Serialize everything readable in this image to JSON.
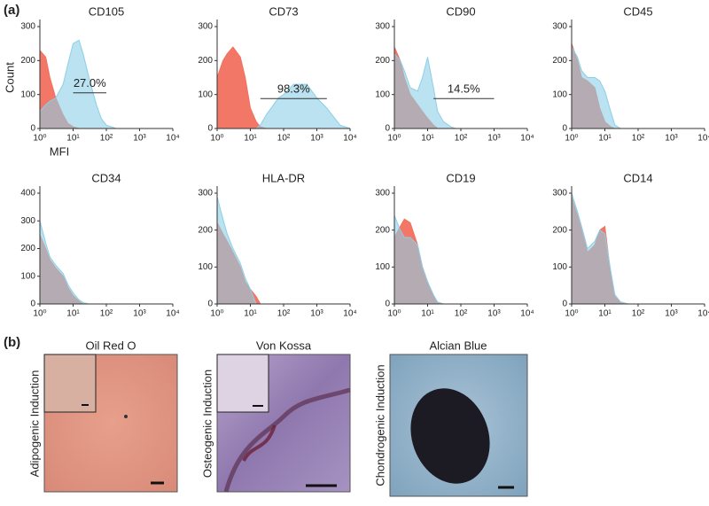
{
  "panel_labels": [
    "(a)",
    "(b)"
  ],
  "chart_data": [
    {
      "type": "area",
      "title": "CD105",
      "ylabel": "Count",
      "xlabel": "MFI",
      "log_x": true,
      "xlim": [
        1,
        10000
      ],
      "xticks": [
        {
          "value": 1,
          "label": "10⁰"
        },
        {
          "value": 10,
          "label": "10¹"
        },
        {
          "value": 100,
          "label": "10²"
        },
        {
          "value": 1000,
          "label": "10³"
        },
        {
          "value": 10000,
          "label": "10⁴"
        }
      ],
      "ylim": [
        0,
        300
      ],
      "yticks": [
        0,
        100,
        200,
        300
      ],
      "x": [
        1,
        1.5,
        2,
        3,
        5,
        7,
        10,
        15,
        20,
        30,
        50,
        70,
        100,
        200,
        500,
        1000,
        2000,
        5000,
        10000
      ],
      "series": [
        {
          "color": "#f2705e",
          "values": [
            230,
            210,
            150,
            90,
            40,
            15,
            5,
            0,
            0,
            0,
            0,
            0,
            0,
            0,
            0,
            0,
            0,
            0,
            0
          ]
        },
        {
          "color": "#8ccfe6",
          "values": [
            50,
            70,
            80,
            90,
            130,
            190,
            250,
            260,
            220,
            150,
            70,
            30,
            10,
            0,
            0,
            0,
            0,
            0,
            0
          ]
        }
      ],
      "gate": {
        "label": "27.0%",
        "range": [
          10,
          100
        ],
        "y": 105
      }
    },
    {
      "type": "area",
      "title": "CD73",
      "log_x": true,
      "xlim": [
        1,
        10000
      ],
      "xticks": [
        {
          "value": 1,
          "label": "10⁰"
        },
        {
          "value": 10,
          "label": "10¹"
        },
        {
          "value": 100,
          "label": "10²"
        },
        {
          "value": 1000,
          "label": "10³"
        },
        {
          "value": 10000,
          "label": "10⁴"
        }
      ],
      "ylim": [
        0,
        300
      ],
      "yticks": [
        0,
        100,
        200,
        300
      ],
      "x": [
        1,
        1.5,
        2,
        3,
        5,
        7,
        10,
        15,
        20,
        30,
        50,
        70,
        100,
        200,
        500,
        1000,
        2000,
        5000,
        10000
      ],
      "series": [
        {
          "color": "#f2705e",
          "values": [
            150,
            200,
            220,
            240,
            210,
            150,
            60,
            20,
            5,
            0,
            0,
            0,
            0,
            0,
            0,
            0,
            0,
            0,
            0
          ]
        },
        {
          "color": "#8ccfe6",
          "values": [
            0,
            0,
            0,
            0,
            0,
            0,
            0,
            0,
            10,
            40,
            70,
            90,
            100,
            130,
            130,
            90,
            60,
            10,
            0
          ]
        }
      ],
      "gate": {
        "label": "98.3%",
        "range": [
          20,
          2000
        ],
        "y": 88
      }
    },
    {
      "type": "area",
      "title": "CD90",
      "log_x": true,
      "xlim": [
        1,
        10000
      ],
      "xticks": [
        {
          "value": 1,
          "label": "10⁰"
        },
        {
          "value": 10,
          "label": "10¹"
        },
        {
          "value": 100,
          "label": "10²"
        },
        {
          "value": 1000,
          "label": "10³"
        },
        {
          "value": 10000,
          "label": "10⁴"
        }
      ],
      "ylim": [
        0,
        300
      ],
      "yticks": [
        0,
        100,
        200,
        300
      ],
      "x": [
        1,
        1.5,
        2,
        3,
        5,
        7,
        10,
        15,
        20,
        30,
        50,
        70,
        100,
        200,
        500,
        1000,
        2000,
        5000,
        10000
      ],
      "series": [
        {
          "color": "#f2705e",
          "values": [
            240,
            200,
            150,
            100,
            70,
            50,
            30,
            10,
            0,
            0,
            0,
            0,
            0,
            0,
            0,
            0,
            0,
            0,
            0
          ]
        },
        {
          "color": "#8ccfe6",
          "values": [
            220,
            200,
            170,
            120,
            110,
            150,
            210,
            120,
            50,
            20,
            5,
            0,
            0,
            0,
            0,
            0,
            0,
            0,
            0
          ]
        }
      ],
      "gate": {
        "label": "14.5%",
        "range": [
          15,
          1000
        ],
        "y": 88
      }
    },
    {
      "type": "area",
      "title": "CD45",
      "log_x": true,
      "xlim": [
        1,
        10000
      ],
      "xticks": [
        {
          "value": 1,
          "label": "10⁰"
        },
        {
          "value": 10,
          "label": "10¹"
        },
        {
          "value": 100,
          "label": "10²"
        },
        {
          "value": 1000,
          "label": "10³"
        },
        {
          "value": 10000,
          "label": "10⁴"
        }
      ],
      "ylim": [
        0,
        300
      ],
      "yticks": [
        0,
        100,
        200,
        300
      ],
      "x": [
        1,
        1.5,
        2,
        3,
        5,
        7,
        10,
        15,
        20,
        30,
        50,
        70,
        100,
        200,
        500,
        1000,
        2000,
        5000,
        10000
      ],
      "series": [
        {
          "color": "#f2705e",
          "values": [
            250,
            200,
            150,
            140,
            120,
            60,
            20,
            5,
            0,
            0,
            0,
            0,
            0,
            0,
            0,
            0,
            0,
            0,
            0
          ]
        },
        {
          "color": "#8ccfe6",
          "values": [
            240,
            210,
            170,
            150,
            150,
            140,
            110,
            50,
            10,
            0,
            0,
            0,
            0,
            0,
            0,
            0,
            0,
            0,
            0
          ]
        }
      ]
    },
    {
      "type": "area",
      "title": "CD34",
      "log_x": true,
      "xlim": [
        1,
        10000
      ],
      "xticks": [
        {
          "value": 1,
          "label": "10⁰"
        },
        {
          "value": 10,
          "label": "10¹"
        },
        {
          "value": 100,
          "label": "10²"
        },
        {
          "value": 1000,
          "label": "10³"
        },
        {
          "value": 10000,
          "label": "10⁴"
        }
      ],
      "ylim": [
        0,
        400
      ],
      "yticks": [
        0,
        100,
        200,
        300,
        400
      ],
      "x": [
        1,
        1.5,
        2,
        3,
        5,
        7,
        10,
        15,
        20,
        30,
        50,
        70,
        100,
        200,
        500,
        1000,
        2000,
        5000,
        10000
      ],
      "series": [
        {
          "color": "#f2705e",
          "values": [
            250,
            200,
            160,
            130,
            100,
            60,
            30,
            10,
            0,
            0,
            0,
            0,
            0,
            0,
            0,
            0,
            0,
            0,
            0
          ]
        },
        {
          "color": "#8ccfe6",
          "values": [
            300,
            220,
            170,
            140,
            110,
            70,
            40,
            15,
            5,
            0,
            0,
            0,
            0,
            0,
            0,
            0,
            0,
            0,
            0
          ]
        }
      ]
    },
    {
      "type": "area",
      "title": "HLA-DR",
      "log_x": true,
      "xlim": [
        1,
        10000
      ],
      "xticks": [
        {
          "value": 1,
          "label": "10⁰"
        },
        {
          "value": 10,
          "label": "10¹"
        },
        {
          "value": 100,
          "label": "10²"
        },
        {
          "value": 1000,
          "label": "10³"
        },
        {
          "value": 10000,
          "label": "10⁴"
        }
      ],
      "ylim": [
        0,
        300
      ],
      "yticks": [
        0,
        100,
        200,
        300
      ],
      "x": [
        1,
        1.5,
        2,
        3,
        5,
        7,
        10,
        15,
        20,
        30,
        50,
        70,
        100,
        200,
        500,
        1000,
        2000,
        5000,
        10000
      ],
      "series": [
        {
          "color": "#f2705e",
          "values": [
            220,
            190,
            170,
            140,
            100,
            60,
            40,
            20,
            0,
            0,
            0,
            0,
            0,
            0,
            0,
            0,
            0,
            0,
            0
          ]
        },
        {
          "color": "#8ccfe6",
          "values": [
            290,
            230,
            190,
            150,
            110,
            70,
            40,
            0,
            0,
            0,
            0,
            0,
            0,
            0,
            0,
            0,
            0,
            0,
            0
          ]
        }
      ]
    },
    {
      "type": "area",
      "title": "CD19",
      "log_x": true,
      "xlim": [
        1,
        10000
      ],
      "xticks": [
        {
          "value": 1,
          "label": "10⁰"
        },
        {
          "value": 10,
          "label": "10¹"
        },
        {
          "value": 100,
          "label": "10²"
        },
        {
          "value": 1000,
          "label": "10³"
        },
        {
          "value": 10000,
          "label": "10⁴"
        }
      ],
      "ylim": [
        0,
        300
      ],
      "yticks": [
        0,
        100,
        200,
        300
      ],
      "x": [
        1,
        1.5,
        2,
        3,
        5,
        7,
        10,
        15,
        20,
        30,
        50,
        70,
        100,
        200,
        500,
        1000,
        2000,
        5000,
        10000
      ],
      "series": [
        {
          "color": "#f2705e",
          "values": [
            180,
            210,
            230,
            220,
            160,
            100,
            60,
            20,
            5,
            0,
            0,
            0,
            0,
            0,
            0,
            0,
            0,
            0,
            0
          ]
        },
        {
          "color": "#8ccfe6",
          "values": [
            240,
            200,
            180,
            180,
            160,
            100,
            60,
            25,
            5,
            0,
            0,
            0,
            0,
            0,
            0,
            0,
            0,
            0,
            0
          ]
        }
      ]
    },
    {
      "type": "area",
      "title": "CD14",
      "log_x": true,
      "xlim": [
        1,
        10000
      ],
      "xticks": [
        {
          "value": 1,
          "label": "10⁰"
        },
        {
          "value": 10,
          "label": "10¹"
        },
        {
          "value": 100,
          "label": "10²"
        },
        {
          "value": 1000,
          "label": "10³"
        },
        {
          "value": 10000,
          "label": "10⁴"
        }
      ],
      "ylim": [
        0,
        300
      ],
      "yticks": [
        0,
        100,
        200,
        300
      ],
      "x": [
        1,
        1.5,
        2,
        3,
        5,
        7,
        10,
        15,
        20,
        30,
        50,
        70,
        100,
        200,
        500,
        1000,
        2000,
        5000,
        10000
      ],
      "series": [
        {
          "color": "#f2705e",
          "values": [
            290,
            240,
            200,
            140,
            160,
            200,
            210,
            80,
            20,
            5,
            0,
            0,
            0,
            0,
            0,
            0,
            0,
            0,
            0
          ]
        },
        {
          "color": "#8ccfe6",
          "values": [
            300,
            250,
            210,
            150,
            170,
            200,
            190,
            90,
            25,
            5,
            0,
            0,
            0,
            0,
            0,
            0,
            0,
            0,
            0
          ]
        }
      ]
    }
  ],
  "images": [
    {
      "title": "Oil Red O",
      "side_label": "Adipogenic Induction"
    },
    {
      "title": "Von Kossa",
      "side_label": "Osteogenic Induction"
    },
    {
      "title": "Alcian Blue",
      "side_label": "Chondrogenic Induction"
    }
  ]
}
